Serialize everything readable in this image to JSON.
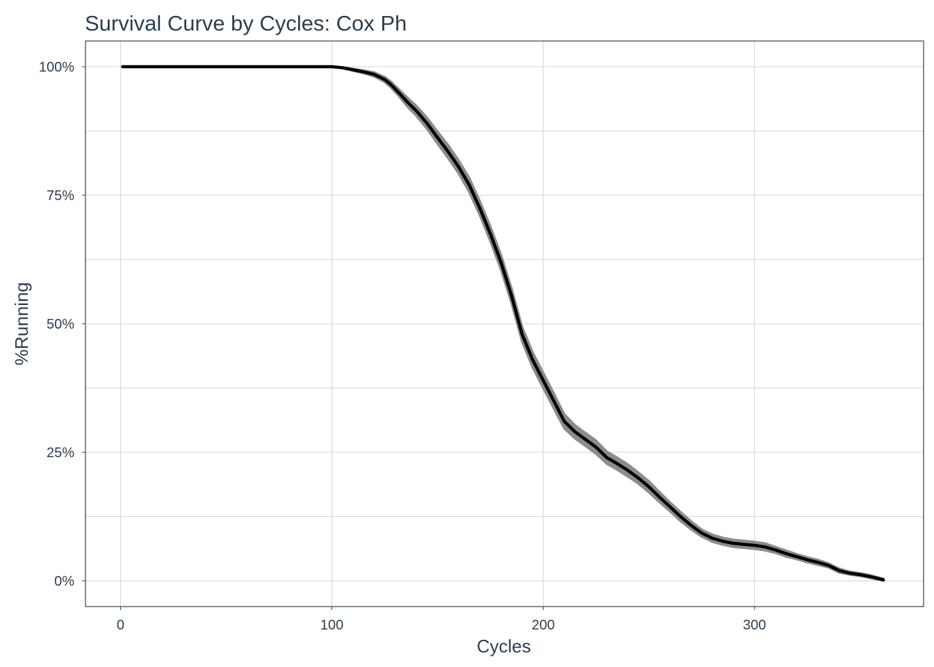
{
  "chart_data": {
    "type": "line",
    "title": "Survival Curve by Cycles: Cox Ph",
    "xlabel": "Cycles",
    "ylabel": "%Running",
    "xlim": [
      -16.6,
      380
    ],
    "ylim": [
      -0.05,
      1.05
    ],
    "x_ticks": [
      0,
      100,
      200,
      300
    ],
    "x_tick_labels": [
      "0",
      "100",
      "200",
      "300"
    ],
    "y_ticks": [
      0,
      0.25,
      0.5,
      0.75,
      1.0
    ],
    "y_tick_labels": [
      "0%",
      "25%",
      "50%",
      "75%",
      "100%"
    ],
    "grid": true,
    "legend": "none",
    "colors": {
      "line": "#000000",
      "band": "#8c8c8c",
      "grid": "#d3d3d3",
      "text": "#2c3e50",
      "border": "#2c3e50"
    },
    "series": [
      {
        "x": [
          1,
          100,
          105,
          110,
          115,
          120,
          125,
          128,
          132,
          136,
          140,
          145,
          150,
          155,
          160,
          165,
          170,
          175,
          180,
          185,
          190,
          195,
          200,
          205,
          210,
          215,
          220,
          225,
          230,
          235,
          240,
          245,
          250,
          255,
          260,
          265,
          270,
          275,
          280,
          285,
          290,
          295,
          300,
          305,
          310,
          315,
          320,
          325,
          330,
          335,
          340,
          345,
          350,
          355,
          361
        ],
        "y": [
          1.0,
          1.0,
          0.998,
          0.994,
          0.99,
          0.985,
          0.975,
          0.965,
          0.948,
          0.93,
          0.914,
          0.89,
          0.862,
          0.835,
          0.805,
          0.77,
          0.725,
          0.675,
          0.62,
          0.555,
          0.48,
          0.43,
          0.39,
          0.35,
          0.31,
          0.29,
          0.275,
          0.26,
          0.24,
          0.228,
          0.215,
          0.2,
          0.183,
          0.163,
          0.144,
          0.125,
          0.108,
          0.093,
          0.083,
          0.077,
          0.073,
          0.071,
          0.069,
          0.066,
          0.06,
          0.053,
          0.047,
          0.041,
          0.036,
          0.03,
          0.02,
          0.015,
          0.012,
          0.008,
          0.002
        ],
        "lower": [
          1.0,
          1.0,
          0.997,
          0.992,
          0.987,
          0.981,
          0.97,
          0.959,
          0.941,
          0.921,
          0.904,
          0.879,
          0.85,
          0.822,
          0.792,
          0.756,
          0.711,
          0.66,
          0.605,
          0.54,
          0.465,
          0.415,
          0.375,
          0.335,
          0.296,
          0.277,
          0.262,
          0.247,
          0.228,
          0.216,
          0.203,
          0.189,
          0.172,
          0.153,
          0.135,
          0.116,
          0.1,
          0.086,
          0.076,
          0.07,
          0.066,
          0.064,
          0.062,
          0.059,
          0.054,
          0.047,
          0.042,
          0.036,
          0.031,
          0.026,
          0.016,
          0.012,
          0.009,
          0.005,
          0.0
        ],
        "upper": [
          1.0,
          1.0,
          0.999,
          0.996,
          0.993,
          0.989,
          0.98,
          0.971,
          0.955,
          0.939,
          0.924,
          0.901,
          0.874,
          0.848,
          0.818,
          0.784,
          0.739,
          0.69,
          0.635,
          0.57,
          0.495,
          0.445,
          0.405,
          0.365,
          0.324,
          0.303,
          0.288,
          0.273,
          0.252,
          0.24,
          0.227,
          0.211,
          0.194,
          0.173,
          0.153,
          0.134,
          0.116,
          0.1,
          0.09,
          0.084,
          0.08,
          0.078,
          0.076,
          0.073,
          0.066,
          0.059,
          0.052,
          0.046,
          0.041,
          0.034,
          0.024,
          0.018,
          0.015,
          0.011,
          0.004
        ]
      }
    ]
  }
}
